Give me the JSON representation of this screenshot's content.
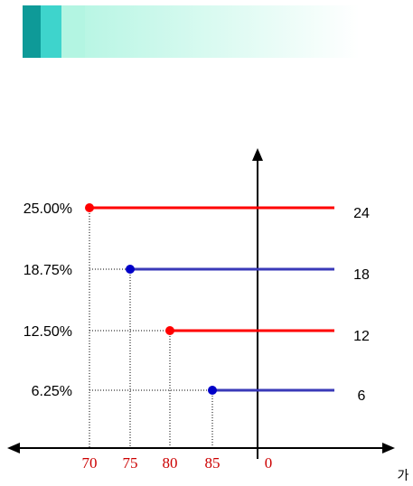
{
  "banner": {
    "colors": [
      "#0e9a98",
      "#3ed4cc",
      "#b3f5e2"
    ]
  },
  "diagram": {
    "x_axis_name": "가",
    "origin_label": "0",
    "tick_labels": [
      "70",
      "75",
      "80",
      "85"
    ],
    "colors": {
      "axis": "#000000",
      "red": "#ff0000",
      "blue": "#3a3ab8",
      "blue_dot": "#0000c8",
      "tick_text": "#cc0000"
    },
    "rows": [
      {
        "left_label": "25.00%",
        "right_label": "24",
        "start": "70",
        "color": "red"
      },
      {
        "left_label": "18.75%",
        "right_label": "18",
        "start": "75",
        "color": "blue"
      },
      {
        "left_label": "12.50%",
        "right_label": "12",
        "start": "80",
        "color": "red"
      },
      {
        "left_label": "6.25%",
        "right_label": "6",
        "start": "85",
        "color": "blue"
      }
    ]
  }
}
